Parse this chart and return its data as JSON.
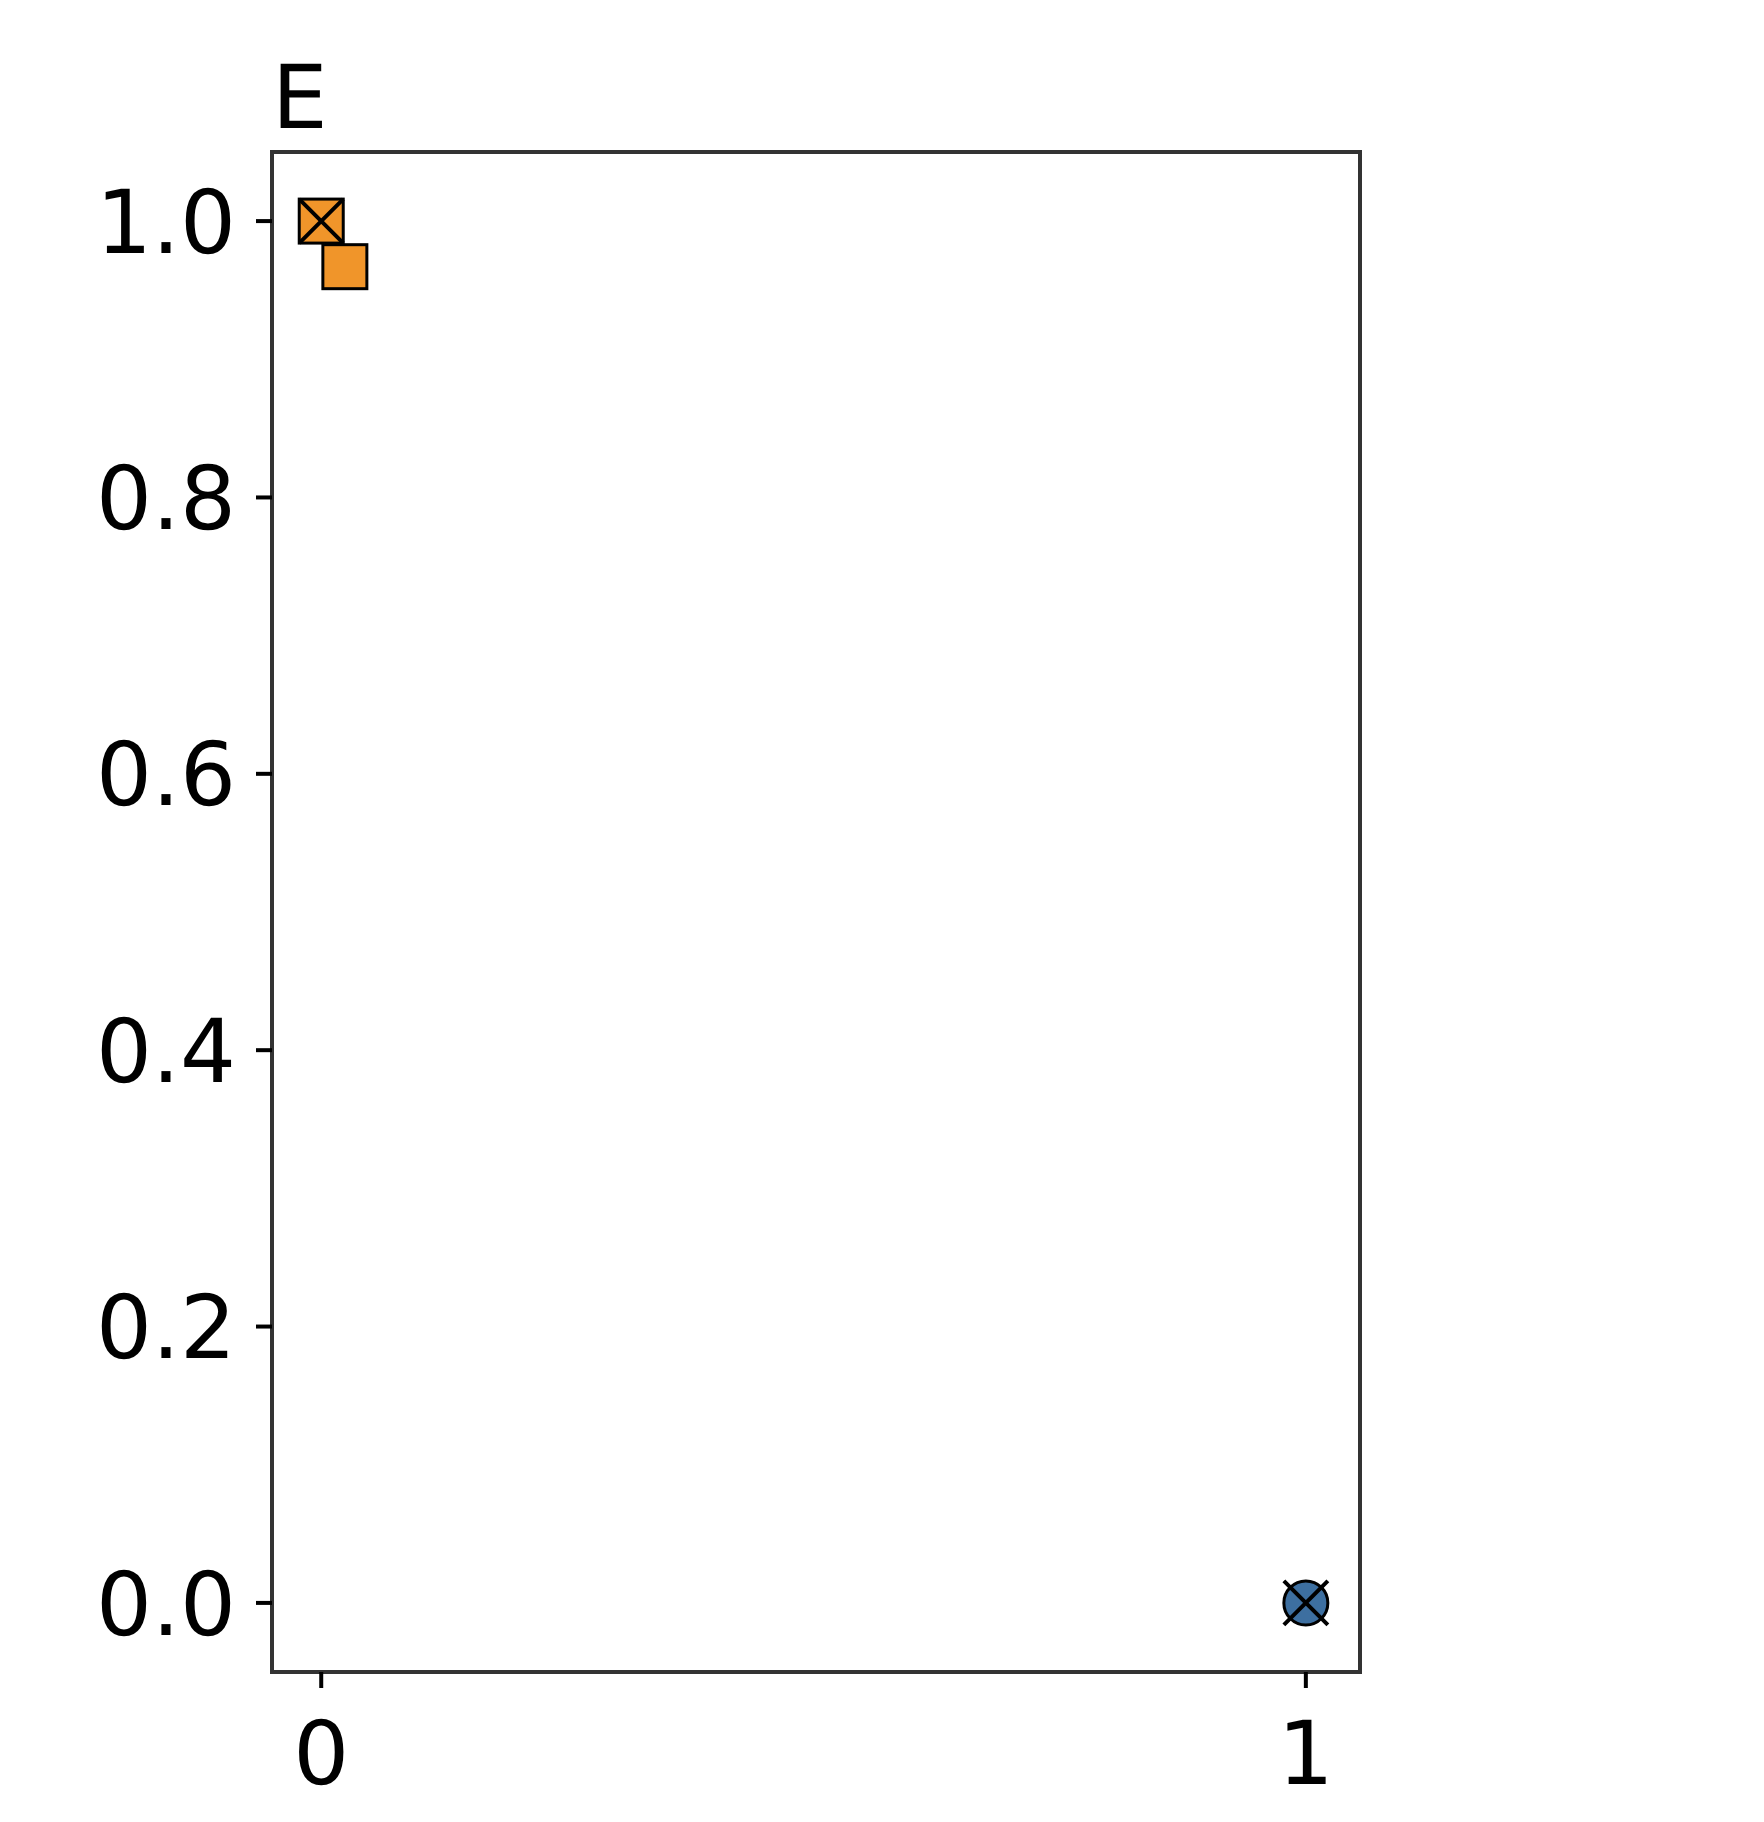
{
  "chart_data": {
    "type": "scatter",
    "title": "E",
    "xlim": [
      -0.05,
      1.055
    ],
    "ylim": [
      -0.05,
      1.05
    ],
    "xticks": [
      0,
      1
    ],
    "yticks": [
      {
        "value": 0,
        "label": "0.0"
      },
      {
        "value": 0.2,
        "label": "0.2"
      },
      {
        "value": 0.4,
        "label": "0.4"
      },
      {
        "value": 0.6,
        "label": "0.6"
      },
      {
        "value": 0.8,
        "label": "0.8"
      },
      {
        "value": 1,
        "label": "1.0"
      }
    ],
    "grid": false,
    "series": [
      {
        "color": "#f0952a",
        "marker": "square",
        "x": [
          0,
          0.024
        ],
        "values": [
          1.0,
          0.967
        ]
      },
      {
        "color": "#3d6fa0",
        "marker": "circle",
        "x": [
          1
        ],
        "values": [
          0
        ]
      },
      {
        "color": "#000000",
        "marker": "cross",
        "x": [
          0,
          1
        ],
        "values": [
          1.0,
          0
        ]
      }
    ]
  }
}
